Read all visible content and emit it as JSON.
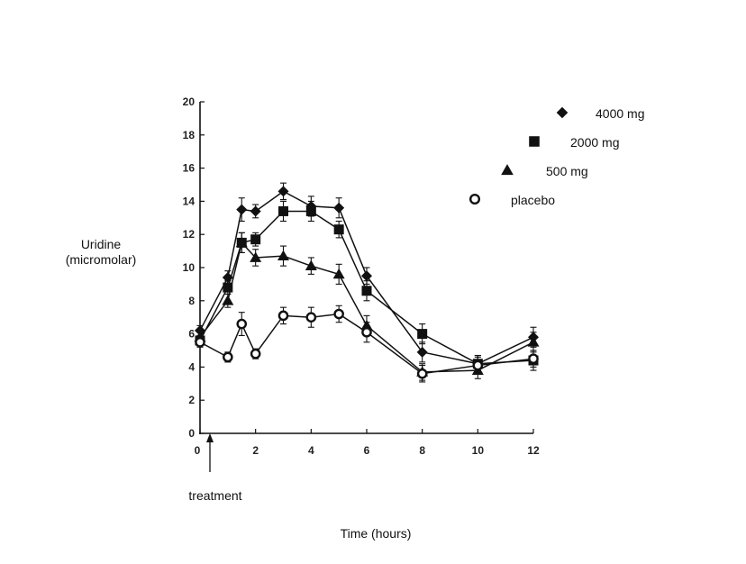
{
  "chart_data": {
    "type": "line",
    "xlabel": "Time (hours)",
    "ylabel": [
      "Uridine",
      "(micromolar)"
    ],
    "annotation": "treatment",
    "xlim": [
      0,
      12
    ],
    "ylim": [
      0,
      20
    ],
    "xticks": [
      0,
      2,
      4,
      6,
      8,
      10,
      12
    ],
    "yticks": [
      0,
      2,
      4,
      6,
      8,
      10,
      12,
      14,
      16,
      18,
      20
    ],
    "grid": false,
    "legend_position": "top-right",
    "series": [
      {
        "name": "4000 mg",
        "marker": "diamond",
        "x": [
          0,
          1,
          1.5,
          2,
          3,
          4,
          5,
          6,
          8,
          10,
          12
        ],
        "y": [
          6.2,
          9.4,
          13.5,
          13.4,
          14.6,
          13.7,
          13.6,
          9.5,
          4.9,
          4.2,
          5.8
        ],
        "err": [
          0.3,
          0.4,
          0.7,
          0.4,
          0.5,
          0.6,
          0.6,
          0.5,
          0.6,
          0.5,
          0.6
        ]
      },
      {
        "name": "2000 mg",
        "marker": "square",
        "x": [
          0,
          1,
          1.5,
          2,
          3,
          4,
          5,
          6,
          8,
          10,
          12
        ],
        "y": [
          5.6,
          8.8,
          11.5,
          11.7,
          13.4,
          13.4,
          12.3,
          8.6,
          6.0,
          4.2,
          4.4
        ],
        "err": [
          0.3,
          0.4,
          0.6,
          0.4,
          0.6,
          0.6,
          0.5,
          0.6,
          0.6,
          0.5,
          0.6
        ]
      },
      {
        "name": "500 mg",
        "marker": "triangle",
        "x": [
          0,
          1,
          1.5,
          2,
          3,
          4,
          5,
          6,
          8,
          10,
          12
        ],
        "y": [
          5.8,
          8.0,
          11.5,
          10.6,
          10.7,
          10.1,
          9.6,
          6.5,
          3.7,
          3.8,
          5.5
        ],
        "err": [
          0.3,
          0.4,
          0.6,
          0.5,
          0.6,
          0.5,
          0.6,
          0.6,
          0.5,
          0.5,
          0.6
        ]
      },
      {
        "name": "placebo",
        "marker": "circle-open",
        "x": [
          0,
          1,
          1.5,
          2,
          3,
          4,
          5,
          6,
          8,
          10,
          12
        ],
        "y": [
          5.5,
          4.6,
          6.6,
          4.8,
          7.1,
          7.0,
          7.2,
          6.1,
          3.6,
          4.1,
          4.5
        ],
        "err": [
          0.3,
          0.3,
          0.7,
          0.3,
          0.5,
          0.6,
          0.5,
          0.6,
          0.5,
          0.5,
          0.5
        ]
      }
    ]
  }
}
